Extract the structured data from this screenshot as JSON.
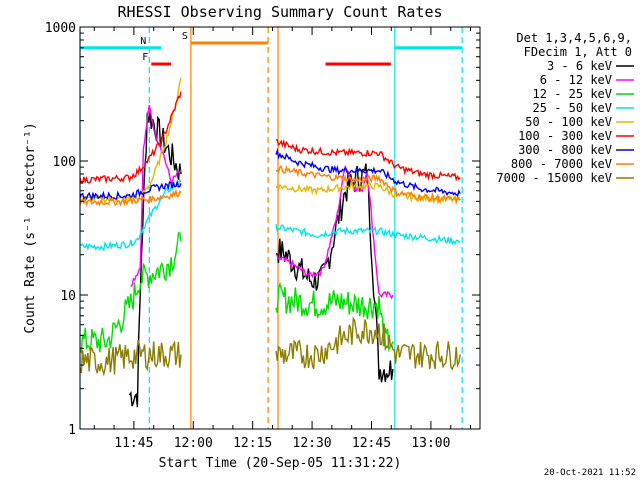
{
  "chart_data": {
    "type": "line",
    "title": "RHESSI Observing Summary Count Rates",
    "xlabel": "Start Time (20-Sep-05 11:31:22)",
    "ylabel": "Count Rate (s⁻¹ detector⁻¹)",
    "yscale": "log",
    "ylim": [
      1,
      1000
    ],
    "xlim_min": [
      0,
      101
    ],
    "x_unit": "minutes after 11:31:22",
    "x_ticks": [
      {
        "t": 13.6,
        "label": "11:45"
      },
      {
        "t": 28.6,
        "label": "12:00"
      },
      {
        "t": 43.6,
        "label": "12:15"
      },
      {
        "t": 58.6,
        "label": "12:30"
      },
      {
        "t": 73.6,
        "label": "12:45"
      },
      {
        "t": 88.6,
        "label": "13:00"
      }
    ],
    "y_ticks": [
      {
        "v": 1,
        "label": "1"
      },
      {
        "v": 10,
        "label": "10"
      },
      {
        "v": 100,
        "label": "100"
      },
      {
        "v": 1000,
        "label": "1000"
      }
    ],
    "legend_header": [
      "Det 1,3,4,5,6,9,",
      "FDecim 1, Att 0"
    ],
    "legend_placement": "right",
    "series": [
      {
        "name": "3 - 6 keV",
        "color": "#000000",
        "x": [
          12.5,
          14.5,
          15.5,
          17,
          19,
          21,
          23,
          25.5,
          49.5,
          52,
          55,
          58,
          61,
          62,
          65,
          67,
          70,
          72.5,
          75.5,
          79
        ],
        "y": [
          1.8,
          1.8,
          20,
          230,
          185,
          140,
          110,
          80,
          22,
          20,
          16,
          13,
          13,
          15,
          35,
          60,
          75,
          80,
          2.8,
          2.8
        ]
      },
      {
        "name": "6 - 12 keV",
        "color": "#ff00ff",
        "x": [
          12.8,
          15.2,
          16,
          17.5,
          19,
          21,
          23,
          25.5,
          49.5,
          52,
          55,
          58,
          61,
          62,
          65,
          67,
          69,
          71,
          72.5,
          75.5,
          79
        ],
        "y": [
          12,
          16,
          120,
          255,
          160,
          115,
          70,
          85,
          19,
          18,
          16,
          14,
          15,
          18,
          40,
          95,
          65,
          58,
          85,
          10,
          10
        ]
      },
      {
        "name": "12 - 25 keV",
        "color": "#00dd00",
        "x": [
          0,
          7,
          12.8,
          15,
          17,
          19,
          21,
          23,
          25.5,
          49.5,
          55,
          60,
          65,
          70,
          75.5,
          77,
          79
        ],
        "y": [
          4.5,
          4.5,
          8.5,
          13,
          14,
          15,
          16,
          18,
          25,
          9.5,
          9,
          8.5,
          9,
          8.5,
          8.5,
          4.5,
          4.5
        ]
      },
      {
        "name": "25 - 50 keV",
        "color": "#00e5e5",
        "x": [
          0,
          6,
          12.5,
          14.5,
          16,
          18,
          20,
          22,
          24,
          25.5,
          49.5,
          55,
          60,
          65,
          70,
          75.5,
          80,
          86,
          96
        ],
        "y": [
          23,
          23,
          24,
          26,
          32,
          40,
          50,
          60,
          65,
          70,
          32,
          30,
          28,
          30,
          30,
          30,
          28,
          27,
          25
        ]
      },
      {
        "name": "50 - 100 keV",
        "color": "#e5b800",
        "x": [
          0,
          12.5,
          15,
          18,
          20,
          22,
          24,
          25.5,
          49.5,
          55,
          60,
          65,
          70,
          75.5,
          80,
          86,
          96
        ],
        "y": [
          52,
          52,
          53,
          70,
          100,
          150,
          250,
          420,
          65,
          62,
          60,
          63,
          65,
          65,
          55,
          53,
          51
        ]
      },
      {
        "name": "100 - 300 keV",
        "color": "#ff0000",
        "x": [
          0,
          12.5,
          15,
          17,
          19,
          21,
          23,
          25.5,
          49.5,
          55,
          60,
          65,
          70,
          75.5,
          80,
          86,
          96
        ],
        "y": [
          72,
          75,
          85,
          100,
          120,
          150,
          210,
          330,
          140,
          122,
          118,
          115,
          115,
          115,
          90,
          80,
          75
        ]
      },
      {
        "name": "300 - 800 keV",
        "color": "#0000ee",
        "x": [
          0,
          12.5,
          15,
          18,
          21,
          25.5,
          49.5,
          55,
          60,
          65,
          70,
          75.5,
          80,
          86,
          96
        ],
        "y": [
          55,
          55,
          58,
          62,
          65,
          68,
          115,
          98,
          90,
          85,
          85,
          85,
          70,
          62,
          57
        ]
      },
      {
        "name": "800 - 7000 keV",
        "color": "#ff7f00",
        "x": [
          0,
          12.5,
          15,
          18,
          21,
          25.5,
          49.5,
          55,
          60,
          65,
          70,
          75.5,
          80,
          86,
          96
        ],
        "y": [
          49,
          50,
          51,
          52,
          54,
          58,
          88,
          82,
          78,
          75,
          72,
          75,
          58,
          54,
          51
        ]
      },
      {
        "name": "7000 - 15000 keV",
        "color": "#8b7d00",
        "x": [
          0,
          7,
          12.8,
          15,
          25.5,
          49.5,
          60,
          65,
          70,
          75.5,
          80,
          86,
          96
        ],
        "y": [
          3.2,
          3.2,
          3.5,
          3.6,
          3.6,
          3.6,
          3.6,
          4.5,
          5.5,
          5.5,
          3.6,
          3.6,
          3.6
        ]
      }
    ],
    "bar_markers": [
      {
        "label": "",
        "color": "#00e5e5",
        "x": [
          0,
          17.5
        ],
        "level": 700
      },
      {
        "label": "N",
        "color": "#00e5e5",
        "x": [
          17.5,
          20.5
        ],
        "level": 700
      },
      {
        "label": "F",
        "color": "#ff0000",
        "x": [
          18,
          23
        ],
        "level": 530
      },
      {
        "label": "S",
        "color": "#ff7f00",
        "x": [
          28,
          47.5
        ],
        "level": 760
      },
      {
        "label": "",
        "color": "#ff0000",
        "x": [
          62,
          78.5
        ],
        "level": 530
      },
      {
        "label": "",
        "color": "#00e5e5",
        "x": [
          79.5,
          96.5
        ],
        "level": 700
      }
    ],
    "vertical_lines": [
      {
        "t": 0,
        "color": "#00e5e5",
        "style": "solid"
      },
      {
        "t": 17.5,
        "color": "#00e5e5",
        "style": "dashed"
      },
      {
        "t": 28,
        "color": "#ff7f00",
        "style": "solid"
      },
      {
        "t": 47.5,
        "color": "#ff7f00",
        "style": "dashed"
      },
      {
        "t": 50,
        "color": "#ff7f00",
        "style": "solid"
      },
      {
        "t": 79.5,
        "color": "#00e5e5",
        "style": "solid"
      },
      {
        "t": 96.5,
        "color": "#00e5e5",
        "style": "dashed"
      }
    ],
    "gap": [
      25.5,
      49.5
    ]
  },
  "footer": {
    "timestamp": "20-Oct-2021 11:52"
  }
}
